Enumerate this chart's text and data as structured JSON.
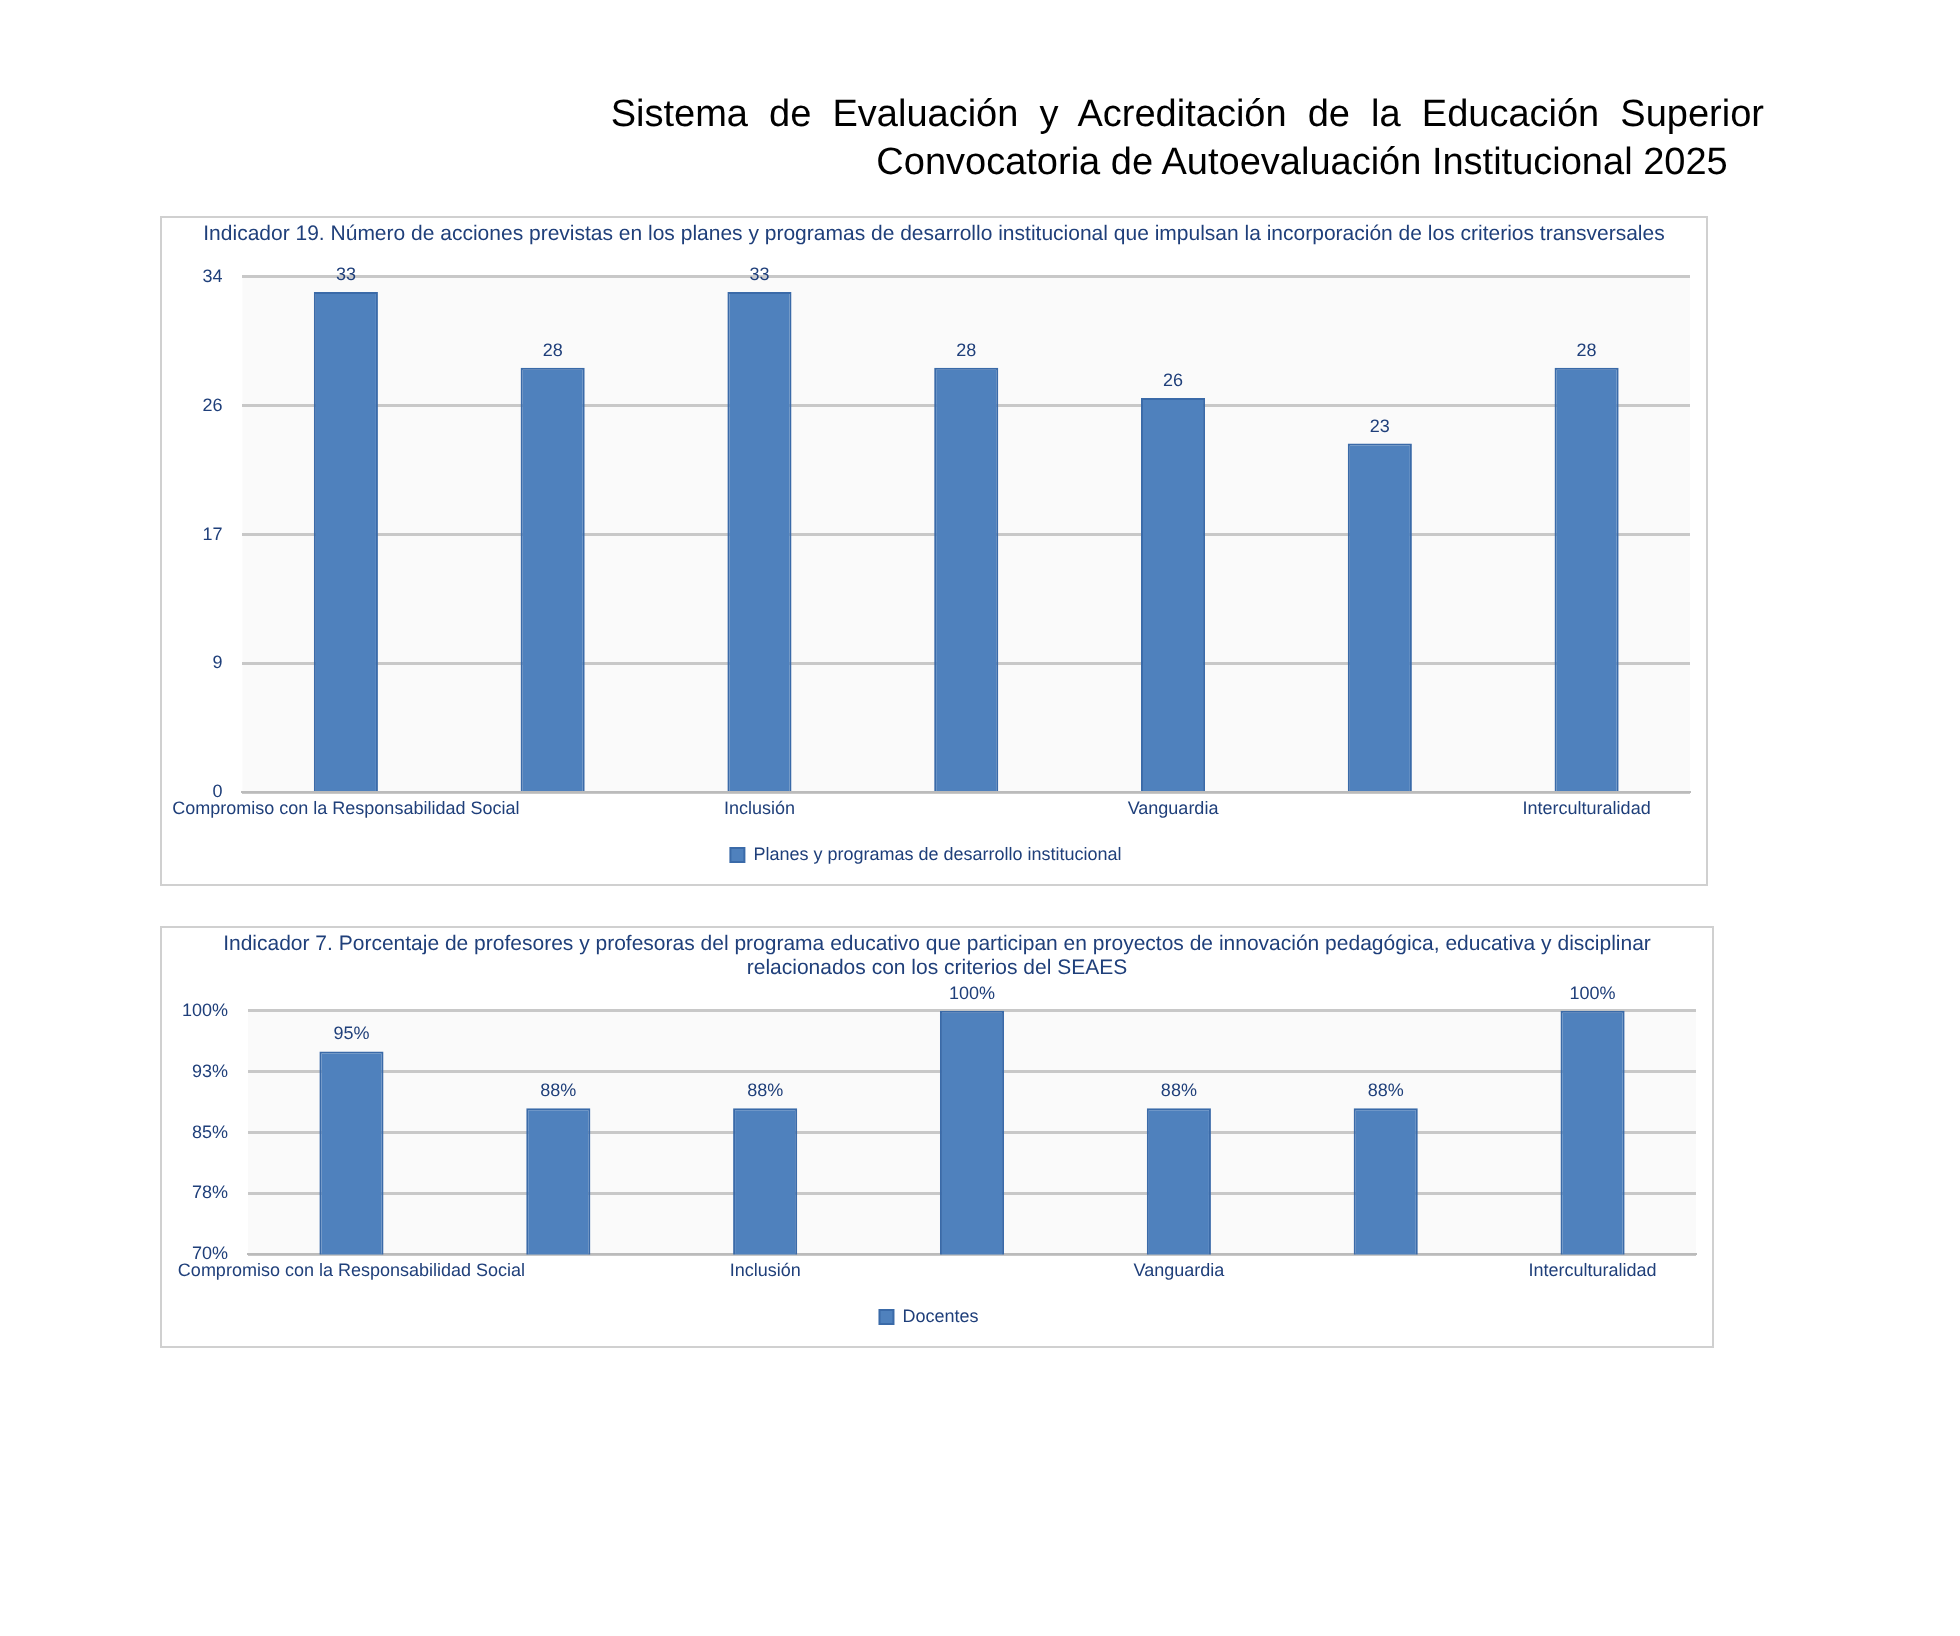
{
  "chart_data": [
    {
      "type": "bar",
      "title": "Indicador 19. Número de acciones previstas en los planes y programas de desarrollo institucional que impulsan la incorporación de los criterios transversales",
      "annotations": [
        "Sistema  de  Evaluación  y  Acreditación  de  la  Educación  Superior",
        "Convocatoria de Autoevaluación Institucional 2025"
      ],
      "categories": [
        "Compromiso con la Responsabilidad Social",
        null,
        "Inclusión",
        null,
        "Vanguardia",
        null,
        "Interculturalidad"
      ],
      "series": [
        {
          "name": "Planes y programas de desarrollo institucional",
          "color": "#4f81bd",
          "values": [
            33,
            28,
            33,
            28,
            26,
            23,
            28
          ]
        }
      ],
      "data_labels": true,
      "ylim": [
        0,
        34
      ],
      "yticks": [
        0,
        {
          "value": 8.5,
          "label": "9"
        },
        17,
        {
          "value": 25.5,
          "label": "26"
        },
        34
      ],
      "grid": "y",
      "legend": "bottom"
    },
    {
      "type": "bar",
      "title": "Indicador 7. Porcentaje de profesores y profesoras del programa educativo que participan en proyectos de innovación pedagógica, educativa y disciplinar relacionados con los criterios del SEAES",
      "categories": [
        "Compromiso con la Responsabilidad Social",
        null,
        "Inclusión",
        null,
        "Vanguardia",
        null,
        "Interculturalidad"
      ],
      "series": [
        {
          "name": "Docentes",
          "color": "#4f81bd",
          "values": [
            95,
            88,
            88,
            100,
            88,
            88,
            100
          ],
          "value_labels": [
            "95%",
            "88%",
            "88%",
            "100%",
            "88%",
            "88%",
            "100%"
          ]
        }
      ],
      "ylim": [
        70,
        100
      ],
      "yticks": [
        {
          "value": 70,
          "label": "70%"
        },
        {
          "value": 77.5,
          "label": "78%"
        },
        {
          "value": 85,
          "label": "85%"
        },
        {
          "value": 92.5,
          "label": "93%"
        },
        {
          "value": 100,
          "label": "100%"
        }
      ],
      "grid": "y",
      "legend": "bottom"
    }
  ]
}
